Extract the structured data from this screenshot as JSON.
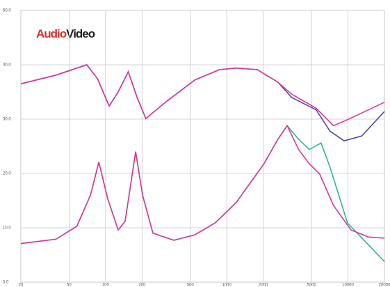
{
  "logo": {
    "audio": "Audio",
    "video": "Video"
  },
  "chart_data": {
    "type": "line",
    "xscale": "log",
    "grid": true,
    "xlim": [
      20,
      20000
    ],
    "xticks": [
      20,
      50,
      100,
      200,
      500,
      1000,
      2000,
      5000,
      10000,
      20000
    ],
    "ylim": [
      0,
      50
    ],
    "yticks": [
      {
        "value": 0,
        "label": "0.0"
      },
      {
        "value": 10,
        "label": "10.0"
      },
      {
        "value": 20,
        "label": "20.0"
      },
      {
        "value": 30,
        "label": "30.0"
      },
      {
        "value": 40,
        "label": "40.0"
      },
      {
        "value": 50,
        "label": "50.0"
      }
    ],
    "series": [
      {
        "color": "#4b4aa8",
        "x": [
          20,
          39,
          70,
          86,
          107,
          127,
          154,
          182,
          215,
          320,
          545,
          870,
          1200,
          1790,
          2640,
          3430,
          5470,
          7100,
          9300,
          13000,
          20000
        ],
        "values": [
          36.5,
          38.1,
          40.0,
          37.4,
          32.4,
          35.0,
          38.7,
          34.0,
          30.1,
          33.3,
          37.2,
          39.1,
          39.4,
          39.1,
          36.8,
          34.0,
          31.7,
          27.8,
          26.0,
          26.9,
          31.4
        ]
      },
      {
        "color": "#e0349c",
        "x": [
          20,
          39,
          70,
          86,
          107,
          127,
          154,
          182,
          215,
          320,
          545,
          870,
          1200,
          1790,
          2640,
          3430,
          5470,
          7600,
          9900,
          20000
        ],
        "values": [
          36.5,
          38.1,
          40.0,
          37.4,
          32.4,
          35.0,
          38.7,
          34.0,
          30.1,
          33.3,
          37.2,
          39.1,
          39.4,
          39.1,
          36.8,
          34.6,
          32.0,
          28.8,
          29.9,
          33.1
        ]
      },
      {
        "color": "#2eb88a",
        "x": [
          20,
          39,
          58,
          75,
          88,
          104,
          127,
          145,
          177,
          202,
          246,
          366,
          545,
          803,
          1200,
          2030,
          2640,
          3150,
          3920,
          4790,
          6000,
          7100,
          9900,
          20000
        ],
        "values": [
          7.1,
          7.9,
          10.3,
          16.0,
          22.1,
          15.4,
          9.6,
          11.2,
          24.0,
          16.0,
          9.0,
          7.7,
          8.7,
          10.9,
          14.7,
          21.8,
          26.3,
          28.8,
          26.3,
          24.4,
          25.6,
          21.2,
          10.9,
          3.8
        ]
      },
      {
        "color": "#e0349c",
        "x": [
          20,
          39,
          58,
          75,
          88,
          104,
          127,
          145,
          177,
          202,
          246,
          366,
          545,
          803,
          1200,
          2030,
          2640,
          3150,
          3920,
          4790,
          5840,
          7600,
          10600,
          14800,
          20000
        ],
        "values": [
          7.1,
          7.9,
          10.3,
          16.0,
          22.1,
          15.4,
          9.6,
          11.2,
          24.0,
          16.0,
          9.0,
          7.7,
          8.7,
          10.9,
          14.7,
          21.8,
          26.3,
          28.8,
          24.4,
          21.8,
          19.9,
          14.1,
          9.6,
          8.3,
          8.1
        ]
      }
    ]
  }
}
